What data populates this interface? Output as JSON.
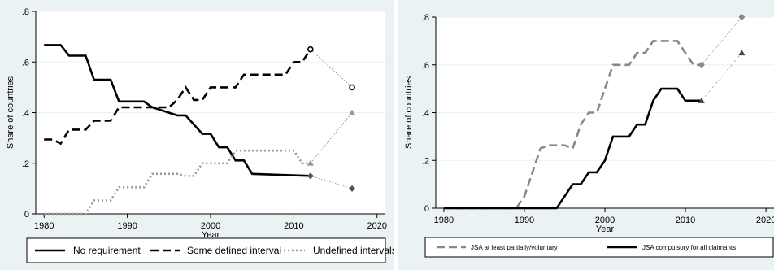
{
  "chart_data": [
    {
      "type": "line",
      "xlabel": "Year",
      "ylabel": "Share of countries",
      "xlim": [
        1979,
        2021
      ],
      "ylim": [
        0,
        0.8
      ],
      "x_ticks": [
        1980,
        1990,
        2000,
        2010,
        2020
      ],
      "x_tick_labels": [
        "1980",
        "1990",
        "2000",
        "2010",
        "2020"
      ],
      "y_ticks": [
        0,
        0.2,
        0.4,
        0.6,
        0.8
      ],
      "y_tick_labels": [
        "0",
        ".2",
        ".4",
        ".6",
        ".8"
      ],
      "grid": "horizontal",
      "legend_position": "bottom",
      "series": [
        {
          "name": "No requirement",
          "style": "solid",
          "color": "#000000",
          "marker": "diamond",
          "x": [
            1980,
            1982,
            1983,
            1985,
            1986,
            1988,
            1989,
            1992,
            1993,
            1996,
            1997,
            1999,
            2000,
            2001,
            2002,
            2003,
            2004,
            2005,
            2012
          ],
          "y": [
            0.667,
            0.667,
            0.625,
            0.625,
            0.53,
            0.53,
            0.444,
            0.444,
            0.421,
            0.389,
            0.389,
            0.316,
            0.316,
            0.263,
            0.263,
            0.211,
            0.211,
            0.158,
            0.15
          ],
          "projection": {
            "x": [
              2012,
              2017
            ],
            "y": [
              0.15,
              0.1
            ]
          }
        },
        {
          "name": "Some defined interval",
          "style": "dashed",
          "color": "#000000",
          "marker": "open-circle",
          "x": [
            1980,
            1981,
            1982,
            1983,
            1985,
            1986,
            1988,
            1989,
            1995,
            1996,
            1997,
            1998,
            1999,
            2000,
            2003,
            2004,
            2009,
            2010,
            2011,
            2012
          ],
          "y": [
            0.294,
            0.294,
            0.278,
            0.333,
            0.333,
            0.368,
            0.368,
            0.421,
            0.421,
            0.45,
            0.5,
            0.45,
            0.45,
            0.5,
            0.5,
            0.55,
            0.55,
            0.6,
            0.6,
            0.65
          ],
          "projection": {
            "x": [
              2012,
              2017
            ],
            "y": [
              0.65,
              0.5
            ]
          }
        },
        {
          "name": "Undefined intervals",
          "style": "dotted",
          "color": "#999999",
          "marker": "triangle",
          "x": [
            1980,
            1985,
            1986,
            1988,
            1989,
            1992,
            1993,
            1996,
            1997,
            1998,
            1999,
            2002,
            2003,
            2010,
            2011,
            2012
          ],
          "y": [
            0,
            0,
            0.053,
            0.053,
            0.105,
            0.105,
            0.158,
            0.158,
            0.15,
            0.15,
            0.2,
            0.2,
            0.25,
            0.25,
            0.2,
            0.2
          ],
          "projection": {
            "x": [
              2012,
              2017
            ],
            "y": [
              0.2,
              0.4
            ]
          }
        }
      ]
    },
    {
      "type": "line",
      "xlabel": "Year",
      "ylabel": "Share of countries",
      "xlim": [
        1979,
        2021
      ],
      "ylim": [
        0,
        0.8
      ],
      "x_ticks": [
        1980,
        1990,
        2000,
        2010,
        2020
      ],
      "x_tick_labels": [
        "1980",
        "1990",
        "2000",
        "2010",
        "2020"
      ],
      "y_ticks": [
        0,
        0.2,
        0.4,
        0.6,
        0.8
      ],
      "y_tick_labels": [
        "0",
        ".2",
        ".4",
        ".6",
        ".8"
      ],
      "grid": "horizontal",
      "legend_position": "bottom",
      "series": [
        {
          "name": "JSA at least partially/voluntary",
          "style": "dashed",
          "color": "#888888",
          "marker": "diamond",
          "x": [
            1980,
            1989,
            1990,
            1991,
            1992,
            1993,
            1995,
            1996,
            1997,
            1998,
            1999,
            2000,
            2001,
            2002,
            2003,
            2004,
            2005,
            2006,
            2007,
            2009,
            2010,
            2011,
            2012
          ],
          "y": [
            0,
            0,
            0.05,
            0.15,
            0.25,
            0.263,
            0.263,
            0.25,
            0.35,
            0.4,
            0.4,
            0.5,
            0.6,
            0.6,
            0.6,
            0.65,
            0.65,
            0.7,
            0.7,
            0.7,
            0.65,
            0.6,
            0.6
          ],
          "projection": {
            "x": [
              2012,
              2017
            ],
            "y": [
              0.6,
              0.8
            ]
          }
        },
        {
          "name": "JSA compulsory for all claimants",
          "style": "solid",
          "color": "#000000",
          "marker": "triangle",
          "x": [
            1980,
            1994,
            1995,
            1996,
            1997,
            1998,
            1999,
            2000,
            2001,
            2003,
            2004,
            2005,
            2006,
            2007,
            2009,
            2010,
            2011,
            2012
          ],
          "y": [
            0,
            0,
            0.05,
            0.1,
            0.1,
            0.15,
            0.15,
            0.2,
            0.3,
            0.3,
            0.35,
            0.35,
            0.45,
            0.5,
            0.5,
            0.45,
            0.45,
            0.45
          ],
          "projection": {
            "x": [
              2012,
              2017
            ],
            "y": [
              0.45,
              0.65
            ]
          }
        }
      ]
    }
  ]
}
